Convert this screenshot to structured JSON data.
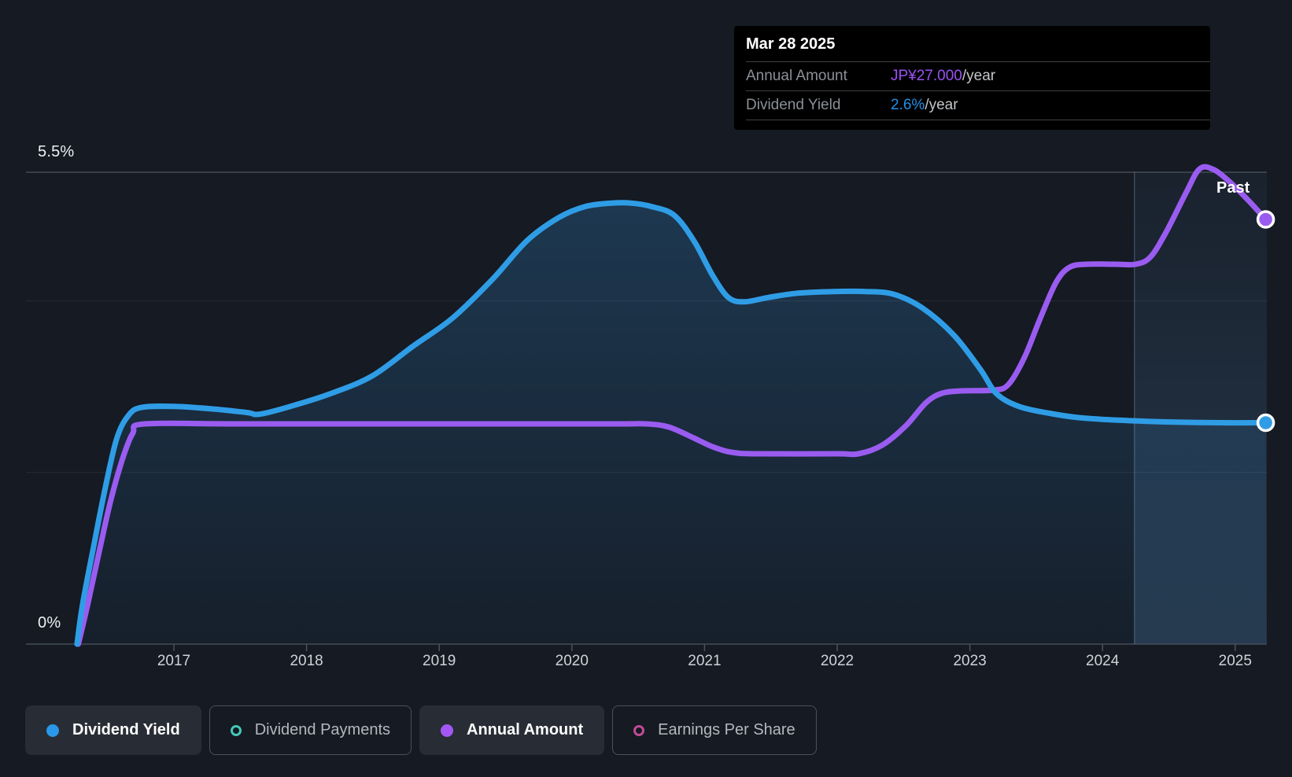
{
  "tooltip": {
    "date": "Mar 28 2025",
    "rows": [
      {
        "label": "Annual Amount",
        "value": "JP¥27.000",
        "suffix": "/year",
        "value_color": "#9b51f5"
      },
      {
        "label": "Dividend Yield",
        "value": "2.6%",
        "suffix": "/year",
        "value_color": "#2090e8"
      }
    ]
  },
  "legend": {
    "items": [
      {
        "label": "Dividend Yield",
        "color": "#2b97e8",
        "style": "filled",
        "active": true
      },
      {
        "label": "Dividend Payments",
        "color": "#45c8b9",
        "style": "outline",
        "active": false
      },
      {
        "label": "Annual Amount",
        "color": "#a358f5",
        "style": "filled",
        "active": true
      },
      {
        "label": "Earnings Per Share",
        "color": "#c24b94",
        "style": "outline",
        "active": false
      }
    ]
  },
  "chart_data": {
    "type": "area",
    "x_axis": {
      "ticks": [
        "2017",
        "2018",
        "2019",
        "2020",
        "2021",
        "2022",
        "2023",
        "2024",
        "2025"
      ]
    },
    "y_axis": {
      "top_label": "5.5%",
      "bottom_label": "0%",
      "unit": "%",
      "range": [
        0,
        5.5
      ],
      "gridlines_pct": [
        5.5,
        4,
        2,
        0
      ]
    },
    "past_marker": {
      "label": "Past",
      "divider_year": 2024.24,
      "region_end_year": 2025.25
    },
    "series": [
      {
        "name": "Dividend Yield",
        "unit": "%",
        "color": "#2f9de6",
        "fill": true,
        "end_value_label": "2.6%",
        "points": [
          [
            2016.27,
            0
          ],
          [
            2016.31,
            0.45
          ],
          [
            2016.39,
            1.1
          ],
          [
            2016.48,
            1.8
          ],
          [
            2016.57,
            2.4
          ],
          [
            2016.66,
            2.67
          ],
          [
            2016.76,
            2.76
          ],
          [
            2017.0,
            2.77
          ],
          [
            2017.3,
            2.74
          ],
          [
            2017.55,
            2.7
          ],
          [
            2017.65,
            2.68
          ],
          [
            2017.9,
            2.78
          ],
          [
            2018.2,
            2.93
          ],
          [
            2018.5,
            3.13
          ],
          [
            2018.8,
            3.47
          ],
          [
            2019.1,
            3.8
          ],
          [
            2019.4,
            4.25
          ],
          [
            2019.66,
            4.7
          ],
          [
            2019.9,
            4.97
          ],
          [
            2020.1,
            5.1
          ],
          [
            2020.3,
            5.14
          ],
          [
            2020.45,
            5.14
          ],
          [
            2020.6,
            5.1
          ],
          [
            2020.77,
            5.0
          ],
          [
            2020.92,
            4.7
          ],
          [
            2021.06,
            4.3
          ],
          [
            2021.18,
            4.04
          ],
          [
            2021.3,
            3.99
          ],
          [
            2021.48,
            4.04
          ],
          [
            2021.7,
            4.09
          ],
          [
            2022.0,
            4.11
          ],
          [
            2022.2,
            4.11
          ],
          [
            2022.42,
            4.08
          ],
          [
            2022.64,
            3.92
          ],
          [
            2022.88,
            3.6
          ],
          [
            2023.08,
            3.2
          ],
          [
            2023.2,
            2.92
          ],
          [
            2023.37,
            2.77
          ],
          [
            2023.6,
            2.69
          ],
          [
            2023.82,
            2.64
          ],
          [
            2024.12,
            2.61
          ],
          [
            2024.48,
            2.59
          ],
          [
            2024.9,
            2.58
          ],
          [
            2025.23,
            2.58
          ]
        ]
      },
      {
        "name": "Annual Amount",
        "unit": "JP¥",
        "color": "#9a5cf0",
        "fill": false,
        "end_value_label": "JP¥27.000",
        "points": [
          [
            2016.28,
            0
          ],
          [
            2016.35,
            2.5
          ],
          [
            2016.44,
            6.0
          ],
          [
            2016.52,
            9.0
          ],
          [
            2016.61,
            11.7
          ],
          [
            2016.69,
            13.4
          ],
          [
            2016.78,
            14.0
          ],
          [
            2017.5,
            14.0
          ],
          [
            2019.0,
            14.0
          ],
          [
            2020.3,
            14.0
          ],
          [
            2020.56,
            14.0
          ],
          [
            2020.73,
            13.8
          ],
          [
            2020.92,
            13.1
          ],
          [
            2021.06,
            12.55
          ],
          [
            2021.2,
            12.2
          ],
          [
            2021.4,
            12.1
          ],
          [
            2022.0,
            12.1
          ],
          [
            2022.16,
            12.1
          ],
          [
            2022.34,
            12.65
          ],
          [
            2022.52,
            13.9
          ],
          [
            2022.67,
            15.35
          ],
          [
            2022.79,
            15.95
          ],
          [
            2022.94,
            16.1
          ],
          [
            2023.18,
            16.15
          ],
          [
            2023.29,
            16.5
          ],
          [
            2023.41,
            18.2
          ],
          [
            2023.53,
            20.7
          ],
          [
            2023.65,
            23.0
          ],
          [
            2023.75,
            23.95
          ],
          [
            2023.88,
            24.15
          ],
          [
            2024.1,
            24.15
          ],
          [
            2024.25,
            24.15
          ],
          [
            2024.36,
            24.6
          ],
          [
            2024.48,
            26.2
          ],
          [
            2024.63,
            28.7
          ],
          [
            2024.73,
            30.2
          ],
          [
            2024.83,
            30.2
          ],
          [
            2024.95,
            29.45
          ],
          [
            2025.1,
            28.2
          ],
          [
            2025.23,
            27.0
          ]
        ]
      }
    ]
  }
}
